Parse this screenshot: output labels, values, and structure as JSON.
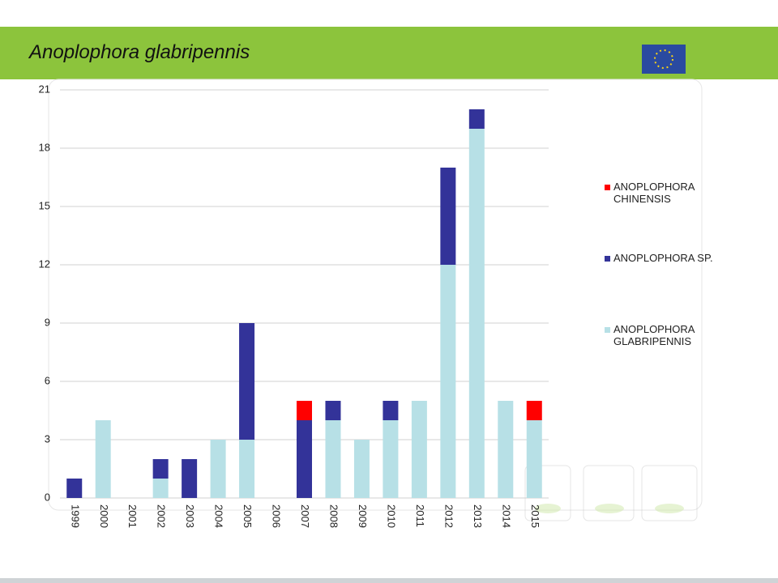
{
  "chart_data": {
    "type": "stacked-bar",
    "title": "Anoplophora glabripennis",
    "categories": [
      "1999",
      "2000",
      "2001",
      "2002",
      "2003",
      "2004",
      "2005",
      "2006",
      "2007",
      "2008",
      "2009",
      "2010",
      "2011",
      "2012",
      "2013",
      "2014",
      "2015"
    ],
    "series": [
      {
        "name": "ANOPLOPHORA GLABRIPENNIS",
        "color": "#b7e0e6",
        "values": [
          0,
          4,
          0,
          1,
          0,
          3,
          3,
          0,
          0,
          4,
          3,
          4,
          5,
          12,
          19,
          5,
          4
        ]
      },
      {
        "name": "ANOPLOPHORA SP.",
        "color": "#333399",
        "values": [
          1,
          0,
          0,
          1,
          2,
          0,
          6,
          0,
          4,
          1,
          0,
          1,
          0,
          5,
          1,
          0,
          0
        ]
      },
      {
        "name": "ANOPLOPHORA CHINENSIS",
        "color": "#ff0000",
        "values": [
          0,
          0,
          0,
          0,
          0,
          0,
          0,
          0,
          1,
          0,
          0,
          0,
          0,
          0,
          0,
          0,
          1
        ]
      }
    ],
    "ylim": [
      0,
      21
    ],
    "yticks": [
      0,
      3,
      6,
      9,
      12,
      15,
      18,
      21
    ],
    "grid": true,
    "legend": "right"
  }
}
